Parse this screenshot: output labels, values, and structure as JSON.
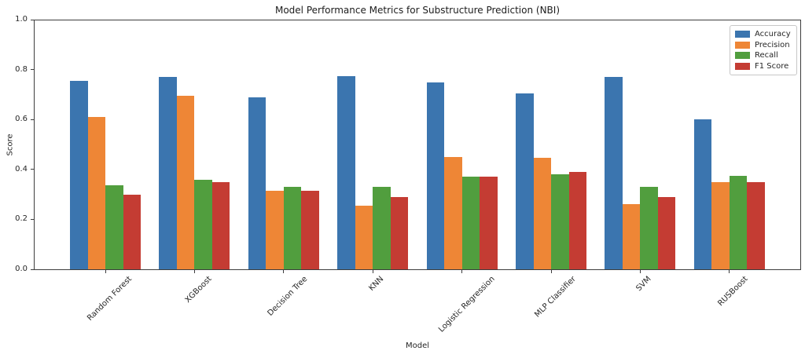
{
  "chart_data": {
    "type": "bar",
    "title": "Model Performance Metrics for Substructure Prediction (NBI)",
    "xlabel": "Model",
    "ylabel": "Score",
    "ylim": [
      0.0,
      1.0
    ],
    "yticks": [
      0.0,
      0.2,
      0.4,
      0.6,
      0.8,
      1.0
    ],
    "grid": false,
    "legend_position": "upper right",
    "x_tick_rotation": 45,
    "categories": [
      "Random Forest",
      "XGBoost",
      "Decision Tree",
      "KNN",
      "Logistic Regression",
      "MLP Classifier",
      "SVM",
      "RUSBoost"
    ],
    "series": [
      {
        "name": "Accuracy",
        "color": "#3b75af",
        "values": [
          0.755,
          0.77,
          0.69,
          0.775,
          0.75,
          0.705,
          0.77,
          0.6
        ]
      },
      {
        "name": "Precision",
        "color": "#ee8636",
        "values": [
          0.61,
          0.695,
          0.315,
          0.255,
          0.45,
          0.445,
          0.26,
          0.35
        ]
      },
      {
        "name": "Recall",
        "color": "#519e3e",
        "values": [
          0.335,
          0.36,
          0.33,
          0.33,
          0.37,
          0.38,
          0.33,
          0.375
        ]
      },
      {
        "name": "F1 Score",
        "color": "#c43c33",
        "values": [
          0.3,
          0.35,
          0.315,
          0.29,
          0.37,
          0.39,
          0.29,
          0.35
        ]
      }
    ]
  }
}
